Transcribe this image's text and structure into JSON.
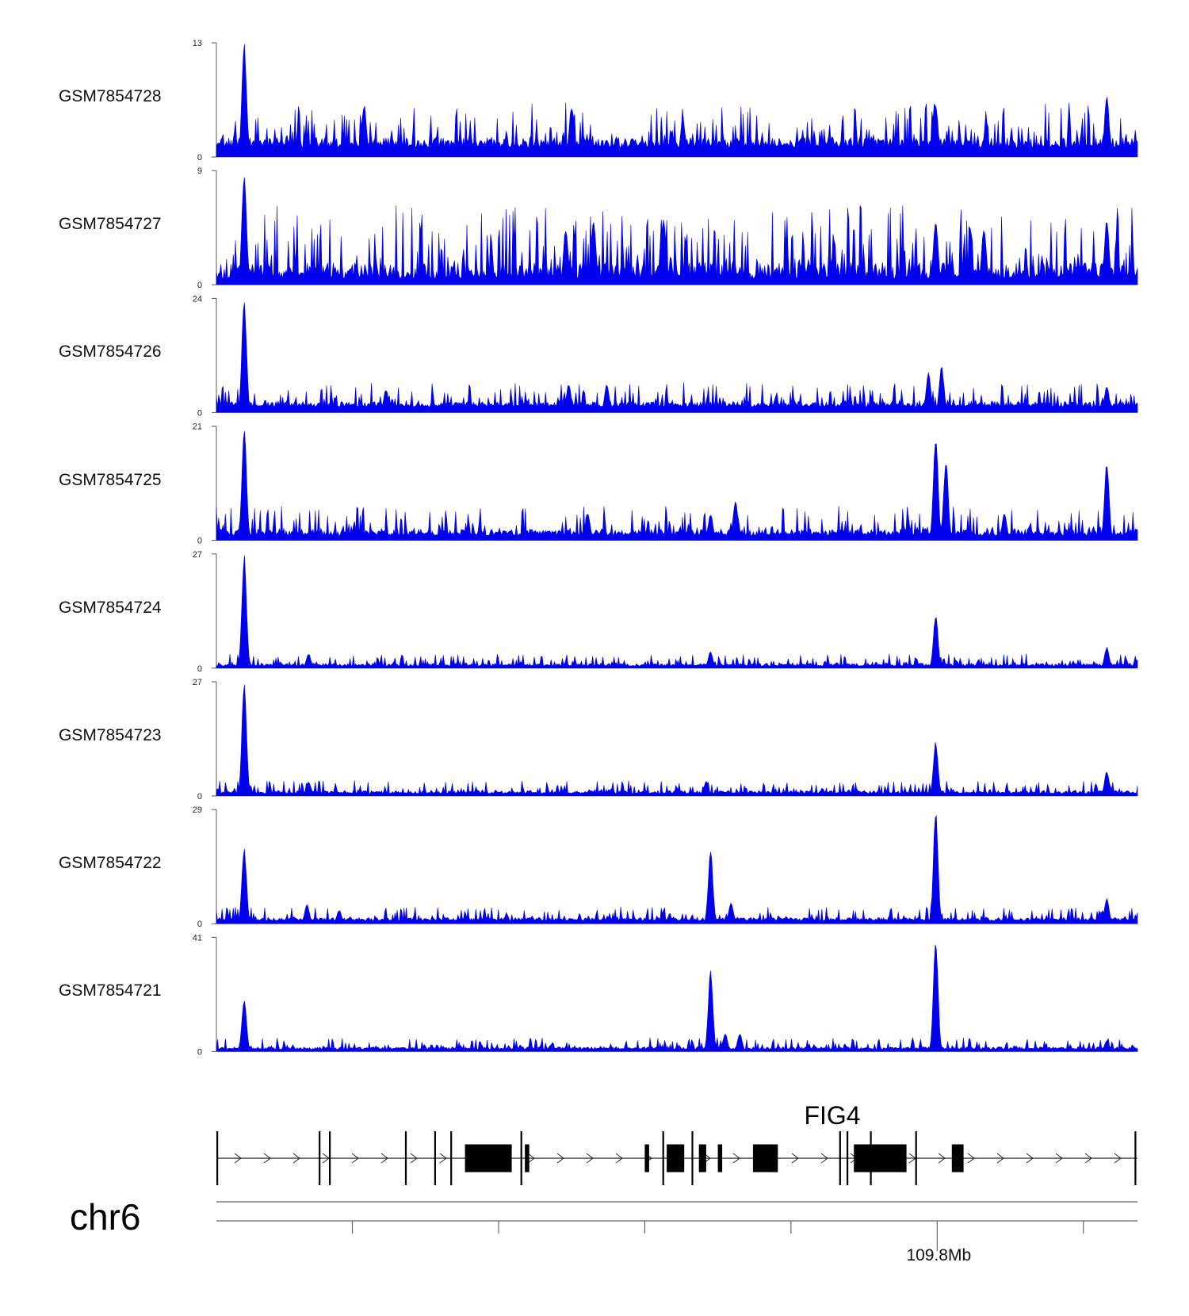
{
  "chart_data": {
    "type": "area",
    "title": "",
    "chromosome": "chr6",
    "x_unit": "Mb",
    "x_range_mb": [
      109.752,
      109.815
    ],
    "x_tick_values_mb": [
      109.7613,
      109.7713,
      109.7813,
      109.7913,
      109.8013,
      109.8113
    ],
    "x_tick_labels": [
      "",
      "",
      "",
      "",
      "109.8Mb",
      ""
    ],
    "y_min": 0,
    "color": "#0000ee",
    "tracks": [
      {
        "name": "GSM7854728",
        "ymax": 13,
        "ymax_label": "13",
        "ymin_label": "0",
        "peaks": [
          [
            109.7539,
            13
          ],
          [
            109.7621,
            6
          ],
          [
            109.7763,
            6
          ],
          [
            109.7839,
            4.5
          ],
          [
            109.8012,
            6
          ],
          [
            109.8129,
            7
          ]
        ],
        "baseline": 1.1,
        "noise": 3.2
      },
      {
        "name": "GSM7854727",
        "ymax": 9,
        "ymax_label": "9",
        "ymin_label": "0",
        "peaks": [
          [
            109.7539,
            9
          ],
          [
            109.7759,
            4.5
          ],
          [
            109.7778,
            5.2
          ],
          [
            109.7826,
            5.2
          ],
          [
            109.8012,
            5.2
          ],
          [
            109.8045,
            4.5
          ],
          [
            109.8129,
            5.2
          ]
        ],
        "baseline": 0.5,
        "noise": 3.6
      },
      {
        "name": "GSM7854726",
        "ymax": 24,
        "ymax_label": "24",
        "ymin_label": "0",
        "peaks": [
          [
            109.7539,
            24
          ],
          [
            109.7636,
            5
          ],
          [
            109.7761,
            6
          ],
          [
            109.7787,
            6
          ],
          [
            109.8007,
            8.5
          ],
          [
            109.8016,
            10
          ],
          [
            109.8129,
            5.5
          ]
        ],
        "baseline": 1.2,
        "noise": 3.2
      },
      {
        "name": "GSM7854725",
        "ymax": 21,
        "ymax_label": "21",
        "ymin_label": "0",
        "peaks": [
          [
            109.7539,
            21
          ],
          [
            109.7774,
            5
          ],
          [
            109.7858,
            5
          ],
          [
            109.7875,
            7.5
          ],
          [
            109.8012,
            19.5
          ],
          [
            109.8019,
            15
          ],
          [
            109.8059,
            5.2
          ],
          [
            109.8129,
            14.5
          ]
        ],
        "baseline": 0.9,
        "noise": 3.4
      },
      {
        "name": "GSM7854724",
        "ymax": 27,
        "ymax_label": "27",
        "ymin_label": "0",
        "peaks": [
          [
            109.7539,
            27
          ],
          [
            109.7583,
            3.5
          ],
          [
            109.7858,
            4
          ],
          [
            109.8012,
            12.5
          ],
          [
            109.8129,
            5
          ]
        ],
        "baseline": 0.5,
        "noise": 1.8
      },
      {
        "name": "GSM7854723",
        "ymax": 27,
        "ymax_label": "27",
        "ymin_label": "0",
        "peaks": [
          [
            109.7539,
            27
          ],
          [
            109.7583,
            3.5
          ],
          [
            109.7855,
            3.5
          ],
          [
            109.8012,
            13
          ],
          [
            109.8129,
            6
          ]
        ],
        "baseline": 0.6,
        "noise": 1.9
      },
      {
        "name": "GSM7854722",
        "ymax": 29,
        "ymax_label": "29",
        "ymin_label": "0",
        "peaks": [
          [
            109.7539,
            19.5
          ],
          [
            109.7582,
            5
          ],
          [
            109.7604,
            3.5
          ],
          [
            109.7858,
            19
          ],
          [
            109.7872,
            5.5
          ],
          [
            109.8012,
            29
          ],
          [
            109.8129,
            6.5
          ]
        ],
        "baseline": 0.8,
        "noise": 2.2
      },
      {
        "name": "GSM7854721",
        "ymax": 41,
        "ymax_label": "41",
        "ymin_label": "0",
        "peaks": [
          [
            109.7539,
            19
          ],
          [
            109.7858,
            29.5
          ],
          [
            109.7868,
            6.5
          ],
          [
            109.7878,
            6.5
          ],
          [
            109.8012,
            41
          ],
          [
            109.8129,
            4
          ]
        ],
        "baseline": 0.8,
        "noise": 2.6
      }
    ],
    "gene": {
      "name": "FIG4",
      "strand": "+",
      "exons_mb": [
        [
          109.752,
          109.7521
        ],
        [
          109.759,
          109.7591
        ],
        [
          109.7597,
          109.7598
        ],
        [
          109.7649,
          109.765
        ],
        [
          109.7669,
          109.767
        ],
        [
          109.768,
          109.7681
        ],
        [
          109.769,
          109.7722
        ],
        [
          109.7728,
          109.7729
        ],
        [
          109.7731,
          109.7734
        ],
        [
          109.7813,
          109.7816
        ],
        [
          109.7825,
          109.7826
        ],
        [
          109.7828,
          109.784
        ],
        [
          109.7845,
          109.7846
        ],
        [
          109.785,
          109.7855
        ],
        [
          109.7863,
          109.7866
        ],
        [
          109.7887,
          109.7904
        ],
        [
          109.7946,
          109.7947
        ],
        [
          109.7951,
          109.7952
        ],
        [
          109.7956,
          109.7992
        ],
        [
          109.7967,
          109.7968
        ],
        [
          109.7998,
          109.7999
        ],
        [
          109.8023,
          109.8031
        ],
        [
          109.8148,
          109.8149
        ]
      ]
    }
  }
}
